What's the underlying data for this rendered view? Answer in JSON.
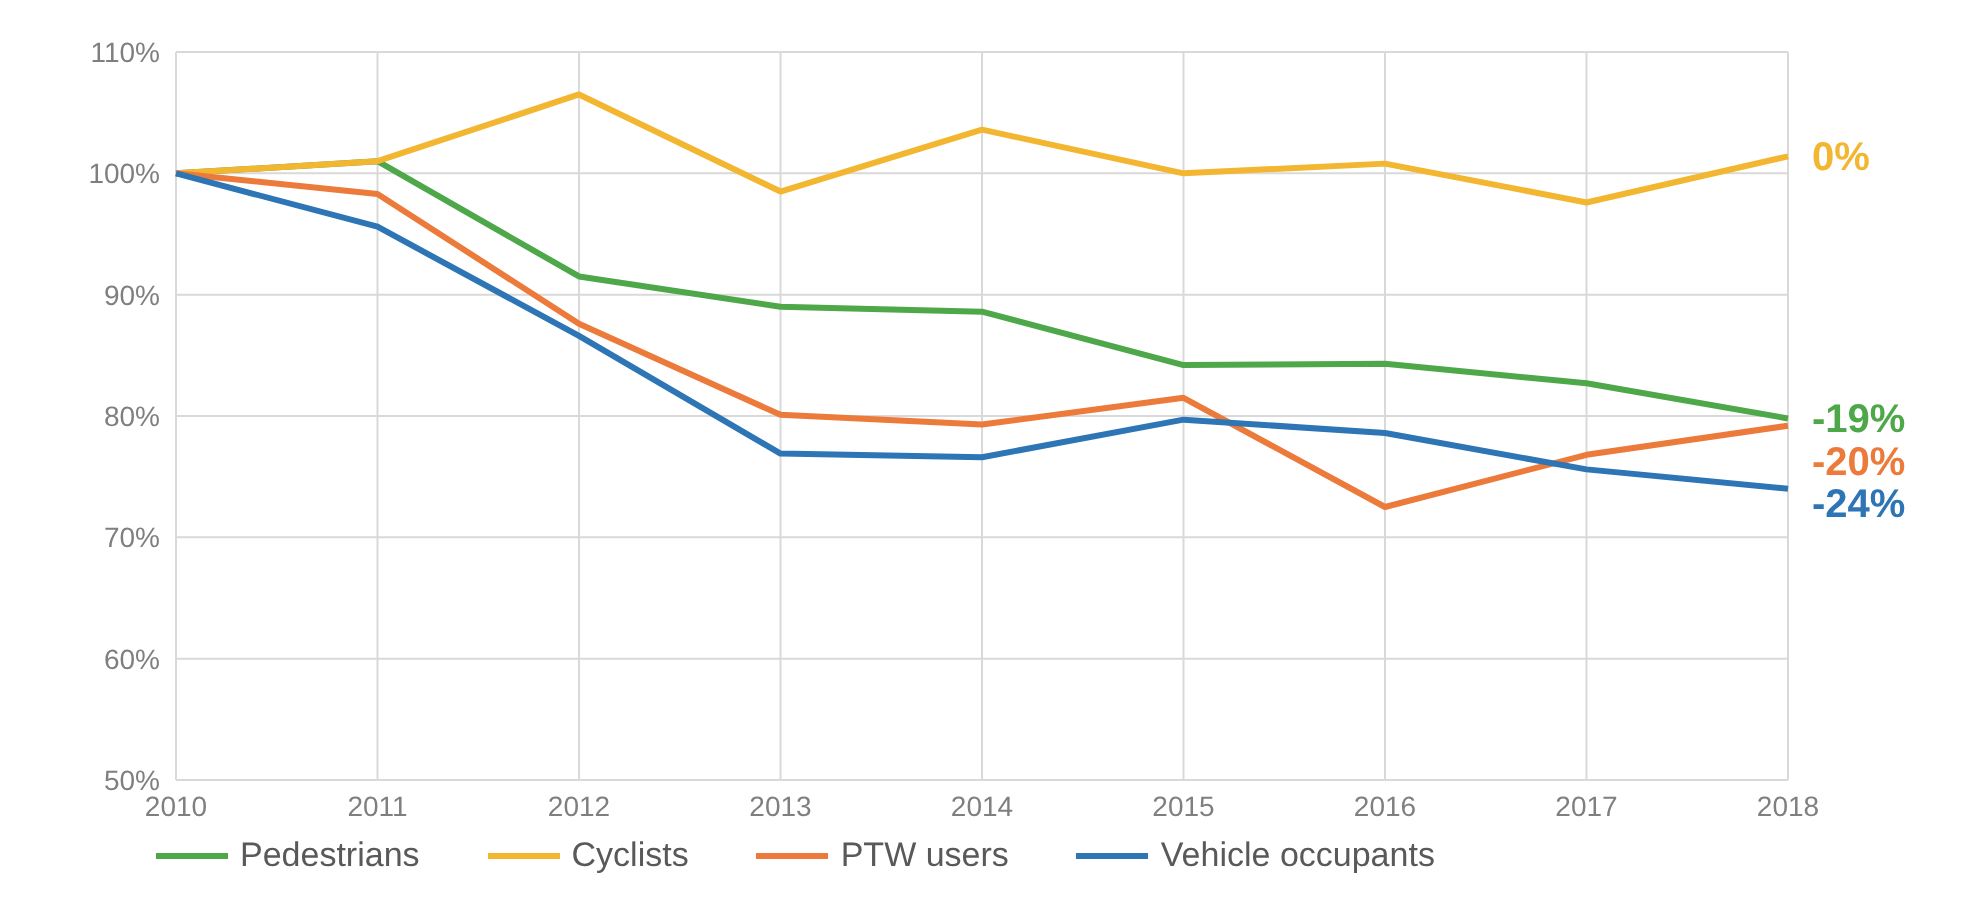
{
  "chart_data": {
    "type": "line",
    "categories": [
      "2010",
      "2011",
      "2012",
      "2013",
      "2014",
      "2015",
      "2016",
      "2017",
      "2018"
    ],
    "series": [
      {
        "name": "Pedestrians",
        "color": "#4ea84a",
        "values": [
          100,
          101,
          91.5,
          89,
          88.6,
          84.2,
          84.3,
          82.7,
          79.8
        ]
      },
      {
        "name": "Cyclists",
        "color": "#f2b630",
        "values": [
          100,
          101,
          106.5,
          98.5,
          103.6,
          100,
          100.8,
          97.6,
          101.4
        ]
      },
      {
        "name": "PTW users",
        "color": "#ec7a3a",
        "values": [
          100,
          98.3,
          87.6,
          80.1,
          79.3,
          81.5,
          72.5,
          76.8,
          79.2
        ]
      },
      {
        "name": "Vehicle occupants",
        "color": "#2e75b6",
        "values": [
          100,
          95.6,
          86.6,
          76.9,
          76.6,
          79.7,
          78.6,
          75.6,
          74
        ]
      }
    ],
    "annotations": [
      "-19%",
      "0%",
      "-20%",
      "-24%"
    ],
    "ylim": [
      50,
      110
    ],
    "yticks": [
      {
        "value": 50,
        "label": "50%"
      },
      {
        "value": 60,
        "label": "60%"
      },
      {
        "value": 70,
        "label": "70%"
      },
      {
        "value": 80,
        "label": "80%"
      },
      {
        "value": 90,
        "label": "90%"
      },
      {
        "value": 100,
        "label": "100%"
      },
      {
        "value": 110,
        "label": "110%"
      }
    ],
    "grid": true,
    "legend": "bottom",
    "marker": "none",
    "line_style": "solid"
  }
}
